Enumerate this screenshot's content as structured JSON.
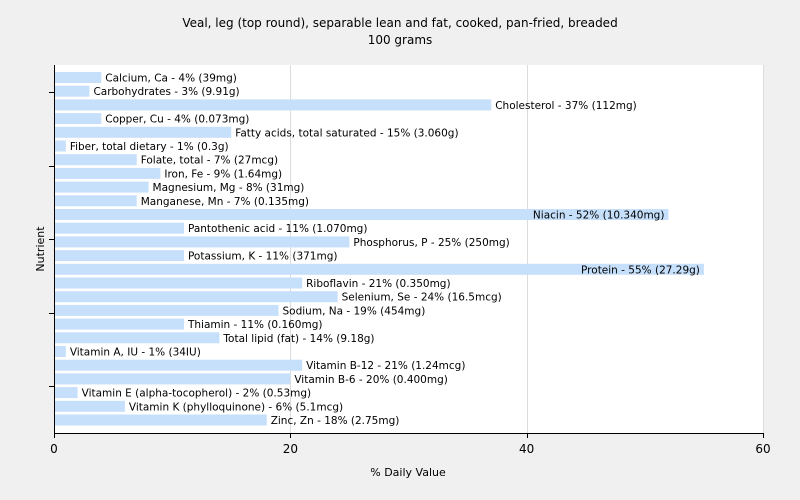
{
  "chart_data": {
    "type": "bar",
    "orientation": "horizontal",
    "title": "Veal, leg (top round), separable lean and fat, cooked, pan-fried, breaded",
    "subtitle": "100 grams",
    "xlabel": "% Daily Value",
    "ylabel": "Nutrient",
    "xlim": [
      0,
      60
    ],
    "xticks": [
      0,
      20,
      40,
      60
    ],
    "grid": true,
    "bar_color": "#c6e0fb",
    "categories": [
      "Calcium, Ca",
      "Carbohydrates",
      "Cholesterol",
      "Copper, Cu",
      "Fatty acids, total saturated",
      "Fiber, total dietary",
      "Folate, total",
      "Iron, Fe",
      "Magnesium, Mg",
      "Manganese, Mn",
      "Niacin",
      "Pantothenic acid",
      "Phosphorus, P",
      "Potassium, K",
      "Protein",
      "Riboflavin",
      "Selenium, Se",
      "Sodium, Na",
      "Thiamin",
      "Total lipid (fat)",
      "Vitamin A, IU",
      "Vitamin B-12",
      "Vitamin B-6",
      "Vitamin E (alpha-tocopherol)",
      "Vitamin K (phylloquinone)",
      "Zinc, Zn"
    ],
    "values": [
      4,
      3,
      37,
      4,
      15,
      1,
      7,
      9,
      8,
      7,
      52,
      11,
      25,
      11,
      55,
      21,
      24,
      19,
      11,
      14,
      1,
      21,
      20,
      2,
      6,
      18
    ],
    "labels": [
      "Calcium, Ca - 4% (39mg)",
      "Carbohydrates - 3% (9.91g)",
      "Cholesterol - 37% (112mg)",
      "Copper, Cu - 4% (0.073mg)",
      "Fatty acids, total saturated - 15% (3.060g)",
      "Fiber, total dietary - 1% (0.3g)",
      "Folate, total - 7% (27mcg)",
      "Iron, Fe - 9% (1.64mg)",
      "Magnesium, Mg - 8% (31mg)",
      "Manganese, Mn - 7% (0.135mg)",
      "Niacin - 52% (10.340mg)",
      "Pantothenic acid - 11% (1.070mg)",
      "Phosphorus, P - 25% (250mg)",
      "Potassium, K - 11% (371mg)",
      "Protein - 55% (27.29g)",
      "Riboflavin - 21% (0.350mg)",
      "Selenium, Se - 24% (16.5mcg)",
      "Sodium, Na - 19% (454mg)",
      "Thiamin - 11% (0.160mg)",
      "Total lipid (fat) - 14% (9.18g)",
      "Vitamin A, IU - 1% (34IU)",
      "Vitamin B-12 - 21% (1.24mcg)",
      "Vitamin B-6 - 20% (0.400mg)",
      "Vitamin E (alpha-tocopherol) - 2% (0.53mg)",
      "Vitamin K (phylloquinone) - 6% (5.1mcg)",
      "Zinc, Zn - 18% (2.75mg)"
    ]
  }
}
